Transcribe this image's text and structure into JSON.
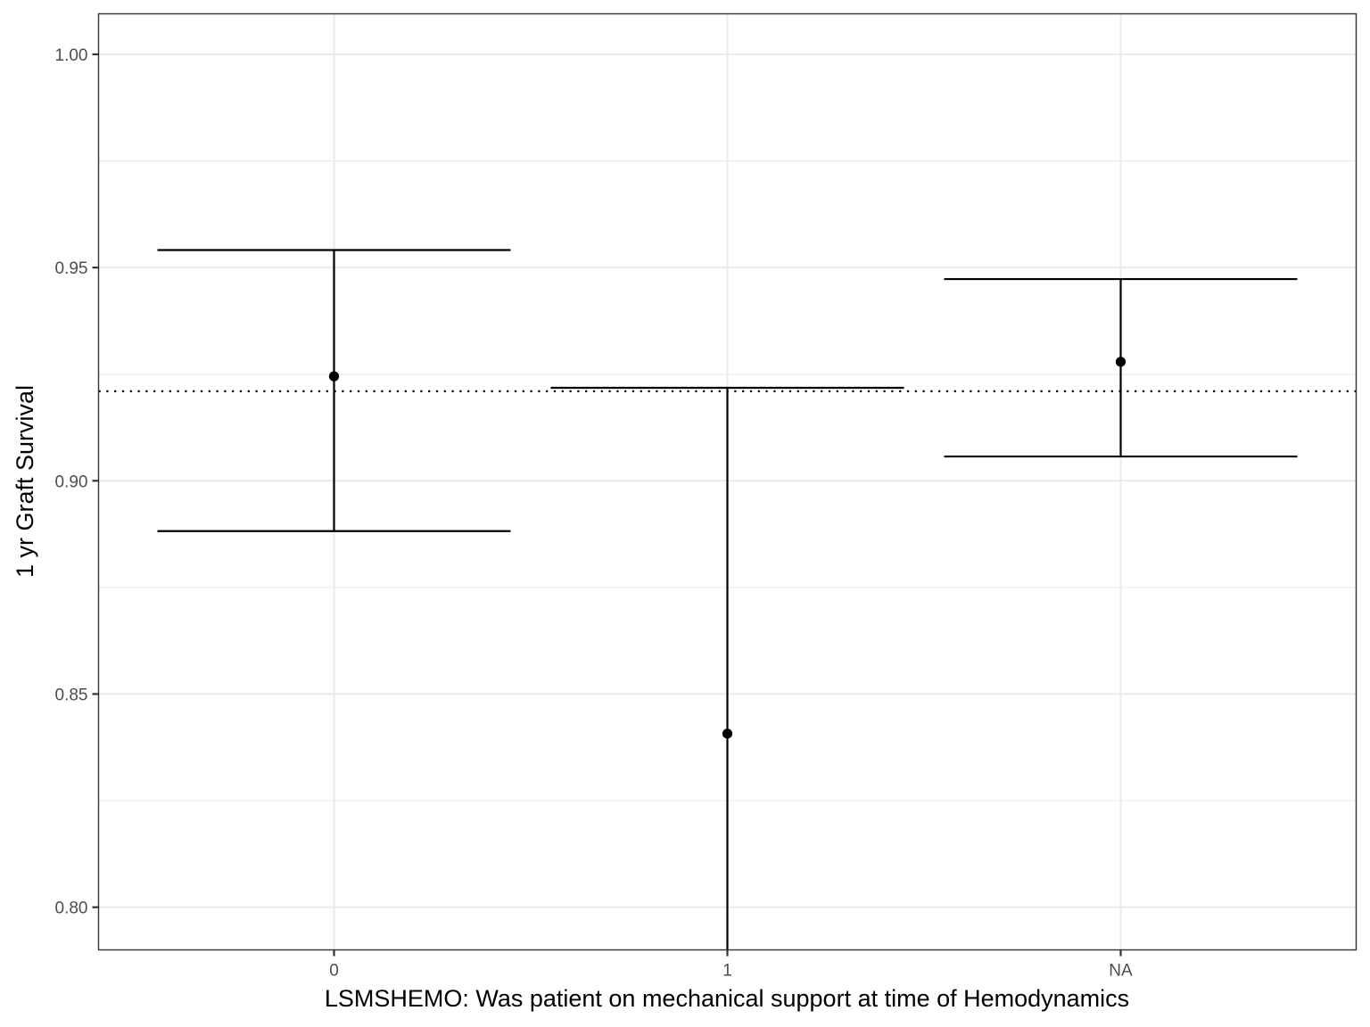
{
  "chart_data": {
    "type": "errorbar",
    "title": "",
    "xlabel": "LSMSHEMO: Was patient on mechanical support at time of Hemodynamics",
    "ylabel": "1 yr Graft Survival",
    "categories": [
      "0",
      "1",
      "NA"
    ],
    "points": [
      {
        "category": "0",
        "estimate": 0.9245,
        "lower": 0.8882,
        "upper": 0.9541
      },
      {
        "category": "1",
        "estimate": 0.8407,
        "lower": 0.79,
        "upper": 0.9218
      },
      {
        "category": "NA",
        "estimate": 0.9279,
        "lower": 0.9057,
        "upper": 0.9473
      }
    ],
    "reference_line": {
      "y": 0.921,
      "style": "dotted"
    },
    "ylim": [
      0.79,
      1.0095
    ],
    "y_ticks": [
      {
        "value": 0.8,
        "label": "0.80"
      },
      {
        "value": 0.85,
        "label": "0.85"
      },
      {
        "value": 0.9,
        "label": "0.90"
      },
      {
        "value": 0.95,
        "label": "0.95"
      },
      {
        "value": 1.0,
        "label": "1.00"
      }
    ],
    "y_minor_ticks": [
      0.825,
      0.875,
      0.925,
      0.975
    ],
    "grid": true,
    "legend": "none"
  },
  "colors": {
    "background": "#ffffff",
    "grid": "#ebebeb",
    "panel_border": "#333333",
    "marks": "#000000",
    "tick_text": "#4d4d4d",
    "axis_title": "#000000"
  }
}
